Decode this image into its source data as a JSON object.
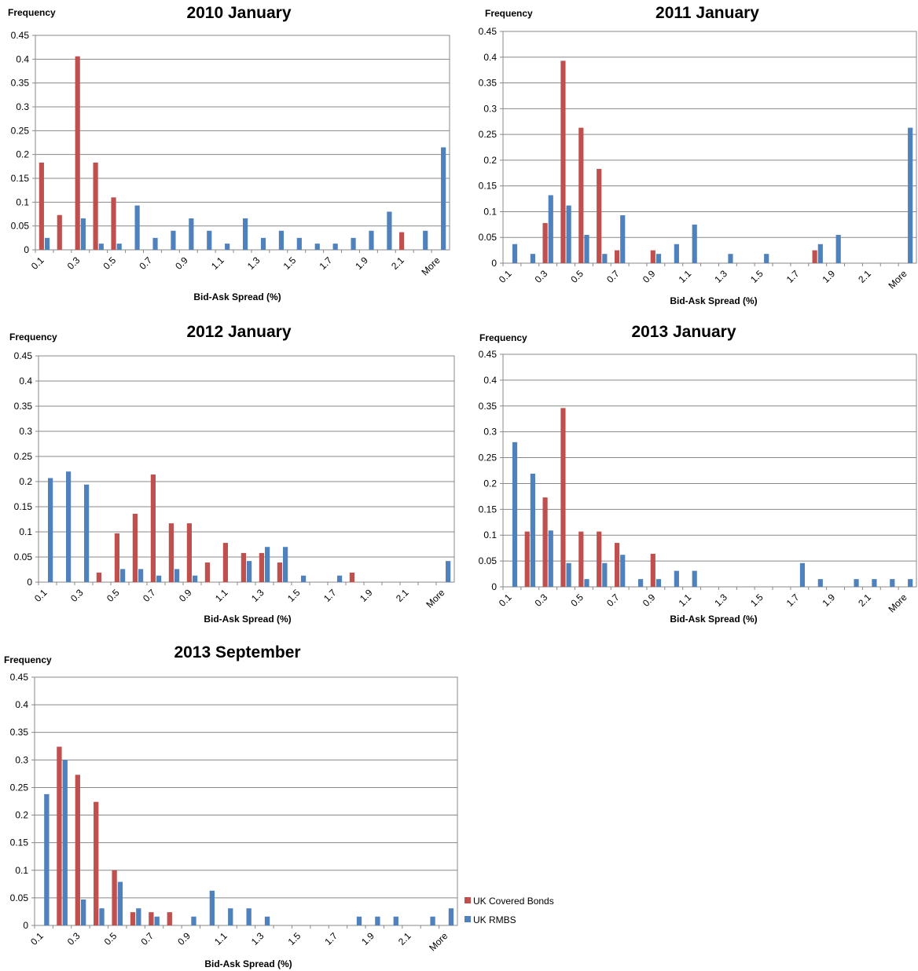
{
  "chart_data": [
    {
      "type": "bar",
      "title": "2010 January",
      "y_label": "Frequency",
      "x_label": "Bid-Ask Spread (%)",
      "categories": [
        "0.1",
        null,
        "0.3",
        null,
        "0.5",
        null,
        "0.7",
        null,
        "0.9",
        null,
        "1.1",
        null,
        "1.3",
        null,
        "1.5",
        null,
        "1.7",
        null,
        "1.9",
        null,
        "2.1",
        null,
        "More"
      ],
      "series": [
        {
          "name": "UK Covered Bonds",
          "color": "#c0504d",
          "values": [
            0.183,
            0.073,
            0.406,
            0.183,
            0.11,
            0,
            0,
            0,
            0,
            0,
            0,
            0,
            0,
            0,
            0,
            0,
            0,
            0,
            0,
            0,
            0.037,
            0,
            0
          ]
        },
        {
          "name": "UK RMBS",
          "color": "#4f81bd",
          "values": [
            0.025,
            0,
            0.066,
            0.013,
            0.013,
            0.093,
            0.025,
            0.04,
            0.066,
            0.04,
            0.013,
            0.066,
            0.025,
            0.04,
            0.025,
            0.013,
            0.013,
            0.025,
            0.04,
            0.08,
            0,
            0.04,
            0.215
          ]
        }
      ],
      "ylim": [
        0,
        0.45
      ],
      "yticks": [
        0,
        0.05,
        0.1,
        0.15,
        0.2,
        0.25,
        0.3,
        0.35,
        0.4,
        0.45
      ],
      "grid": true
    },
    {
      "type": "bar",
      "title": "2011 January",
      "y_label": "Frequency",
      "x_label": "Bid-Ask Spread (%)",
      "categories": [
        "0.1",
        null,
        "0.3",
        null,
        "0.5",
        null,
        "0.7",
        null,
        "0.9",
        null,
        "1.1",
        null,
        "1.3",
        null,
        "1.5",
        null,
        "1.7",
        null,
        "1.9",
        null,
        "2.1",
        null,
        "More"
      ],
      "series": [
        {
          "name": "UK Covered Bonds",
          "color": "#c0504d",
          "values": [
            0,
            0,
            0.078,
            0.393,
            0.263,
            0.183,
            0.025,
            0,
            0.025,
            0,
            0,
            0,
            0,
            0,
            0,
            0,
            0,
            0.025,
            0,
            0,
            0,
            0,
            0
          ]
        },
        {
          "name": "UK RMBS",
          "color": "#4f81bd",
          "values": [
            0.037,
            0.018,
            0.132,
            0.112,
            0.055,
            0.018,
            0.093,
            0,
            0.018,
            0.037,
            0.075,
            0,
            0.018,
            0,
            0.018,
            0,
            0,
            0.037,
            0.055,
            0,
            0,
            0,
            0.263
          ]
        }
      ],
      "ylim": [
        0,
        0.45
      ],
      "yticks": [
        0,
        0.05,
        0.1,
        0.15,
        0.2,
        0.25,
        0.3,
        0.35,
        0.4,
        0.45
      ],
      "grid": true
    },
    {
      "type": "bar",
      "title": "2012 January",
      "y_label": "Frequency",
      "x_label": "Bid-Ask Spread (%)",
      "categories": [
        "0.1",
        null,
        "0.3",
        null,
        "0.5",
        null,
        "0.7",
        null,
        "0.9",
        null,
        "1.1",
        null,
        "1.3",
        null,
        "1.5",
        null,
        "1.7",
        null,
        "1.9",
        null,
        "2.1",
        null,
        "More"
      ],
      "series": [
        {
          "name": "UK Covered Bonds",
          "color": "#c0504d",
          "values": [
            0,
            0,
            0,
            0.019,
            0.097,
            0.136,
            0.214,
            0.117,
            0.117,
            0.039,
            0.078,
            0.058,
            0.058,
            0.039,
            0,
            0,
            0,
            0.019,
            0,
            0,
            0,
            0,
            0
          ]
        },
        {
          "name": "UK RMBS",
          "color": "#4f81bd",
          "values": [
            0.207,
            0.22,
            0.194,
            0,
            0.026,
            0.026,
            0.013,
            0.026,
            0.013,
            0,
            0,
            0.042,
            0.07,
            0.07,
            0.013,
            0,
            0.013,
            0,
            0,
            0,
            0,
            0,
            0.042
          ]
        }
      ],
      "ylim": [
        0,
        0.45
      ],
      "yticks": [
        0,
        0.05,
        0.1,
        0.15,
        0.2,
        0.25,
        0.3,
        0.35,
        0.4,
        0.45
      ],
      "grid": true
    },
    {
      "type": "bar",
      "title": "2013 January",
      "y_label": "Frequency",
      "x_label": "Bid-Ask Spread (%)",
      "categories": [
        "0.1",
        null,
        "0.3",
        null,
        "0.5",
        null,
        "0.7",
        null,
        "0.9",
        null,
        "1.1",
        null,
        "1.3",
        null,
        "1.5",
        null,
        "1.7",
        null,
        "1.9",
        null,
        "2.1",
        null,
        "More"
      ],
      "series": [
        {
          "name": "UK Covered Bonds",
          "color": "#c0504d",
          "values": [
            0,
            0.107,
            0.173,
            0.346,
            0.107,
            0.107,
            0.085,
            0,
            0.064,
            0,
            0,
            0,
            0,
            0,
            0,
            0,
            0,
            0,
            0,
            0,
            0,
            0,
            0
          ]
        },
        {
          "name": "UK RMBS",
          "color": "#4f81bd",
          "values": [
            0.28,
            0.219,
            0.109,
            0.046,
            0.015,
            0.046,
            0.062,
            0.015,
            0.015,
            0.031,
            0.031,
            0,
            0,
            0,
            0,
            0,
            0.046,
            0.015,
            0,
            0.015,
            0.015,
            0.015,
            0.015
          ]
        }
      ],
      "ylim": [
        0,
        0.45
      ],
      "yticks": [
        0,
        0.05,
        0.1,
        0.15,
        0.2,
        0.25,
        0.3,
        0.35,
        0.4,
        0.45
      ],
      "grid": true
    },
    {
      "type": "bar",
      "title": "2013 September",
      "y_label": "Frequency",
      "x_label": "Bid-Ask Spread (%)",
      "categories": [
        "0.1",
        null,
        "0.3",
        null,
        "0.5",
        null,
        "0.7",
        null,
        "0.9",
        null,
        "1.1",
        null,
        "1.3",
        null,
        "1.5",
        null,
        "1.7",
        null,
        "1.9",
        null,
        "2.1",
        null,
        "More"
      ],
      "series": [
        {
          "name": "UK Covered Bonds",
          "color": "#c0504d",
          "values": [
            0,
            0.324,
            0.273,
            0.224,
            0.1,
            0.024,
            0.024,
            0.024,
            0,
            0,
            0,
            0,
            0,
            0,
            0,
            0,
            0,
            0,
            0,
            0,
            0,
            0,
            0
          ]
        },
        {
          "name": "UK RMBS",
          "color": "#4f81bd",
          "values": [
            0.238,
            0.3,
            0.047,
            0.031,
            0.079,
            0.031,
            0.016,
            0,
            0.016,
            0.063,
            0.031,
            0.031,
            0.016,
            0,
            0,
            0,
            0,
            0.016,
            0.016,
            0.016,
            0,
            0.016,
            0.031
          ]
        }
      ],
      "ylim": [
        0,
        0.45
      ],
      "yticks": [
        0,
        0.05,
        0.1,
        0.15,
        0.2,
        0.25,
        0.3,
        0.35,
        0.4,
        0.45
      ],
      "grid": true,
      "legend": "right"
    }
  ]
}
